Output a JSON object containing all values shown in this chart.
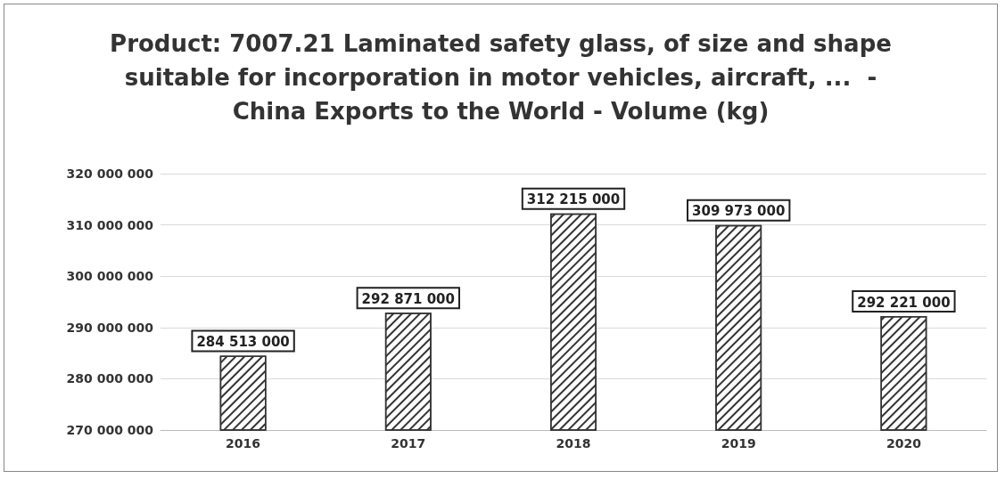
{
  "chart_data": {
    "type": "bar",
    "title": "Product: 7007.21 Laminated safety glass, of size and shape suitable for incorporation in motor vehicles, aircraft, ...  - China Exports to the World - Volume (kg)",
    "categories": [
      "2016",
      "2017",
      "2018",
      "2019",
      "2020"
    ],
    "values": [
      284513000,
      292871000,
      312215000,
      309973000,
      292221000
    ],
    "value_labels": [
      "284 513 000",
      "292 871 000",
      "312 215 000",
      "309 973 000",
      "292 221 000"
    ],
    "color": "#333333",
    "ylim": [
      270000000,
      320000000
    ],
    "yticks": [
      {
        "value": 270000000,
        "label": "270 000 000"
      },
      {
        "value": 280000000,
        "label": "280 000 000"
      },
      {
        "value": 290000000,
        "label": "290 000 000"
      },
      {
        "value": 300000000,
        "label": "300 000 000"
      },
      {
        "value": 310000000,
        "label": "310 000 000"
      },
      {
        "value": 320000000,
        "label": "320 000 000"
      }
    ],
    "grid": "y"
  }
}
